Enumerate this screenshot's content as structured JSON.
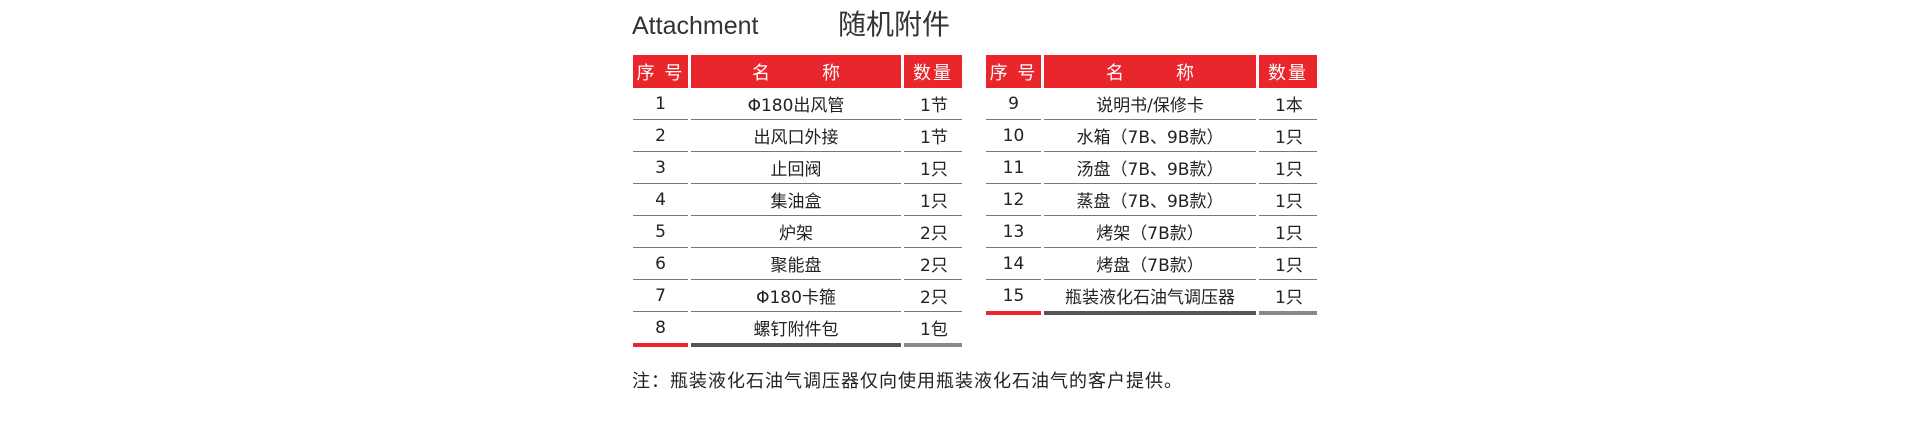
{
  "title_en": "Attachment",
  "title_cn": "随机附件",
  "headers": {
    "no": "序 号",
    "name_a": "名",
    "name_b": "称",
    "qty": "数量"
  },
  "left_rows": [
    {
      "no": "1",
      "name": "Φ180出风管",
      "qty": "1节"
    },
    {
      "no": "2",
      "name": "出风口外接",
      "qty": "1节"
    },
    {
      "no": "3",
      "name": "止回阀",
      "qty": "1只"
    },
    {
      "no": "4",
      "name": "集油盒",
      "qty": "1只"
    },
    {
      "no": "5",
      "name": "炉架",
      "qty": "2只"
    },
    {
      "no": "6",
      "name": "聚能盘",
      "qty": "2只"
    },
    {
      "no": "7",
      "name": "Φ180卡箍",
      "qty": "2只"
    },
    {
      "no": "8",
      "name": "螺钉附件包",
      "qty": "1包"
    }
  ],
  "right_rows": [
    {
      "no": "9",
      "name": "说明书/保修卡",
      "qty": "1本"
    },
    {
      "no": "10",
      "name": "水箱（7B、9B款）",
      "qty": "1只"
    },
    {
      "no": "11",
      "name": "汤盘（7B、9B款）",
      "qty": "1只"
    },
    {
      "no": "12",
      "name": "蒸盘（7B、9B款）",
      "qty": "1只"
    },
    {
      "no": "13",
      "name": "烤架（7B款）",
      "qty": "1只"
    },
    {
      "no": "14",
      "name": "烤盘（7B款）",
      "qty": "1只"
    },
    {
      "no": "15",
      "name": "瓶装液化石油气调压器",
      "qty": "1只"
    }
  ],
  "note": "注：瓶装液化石油气调压器仅向使用瓶装液化石油气的客户提供。"
}
